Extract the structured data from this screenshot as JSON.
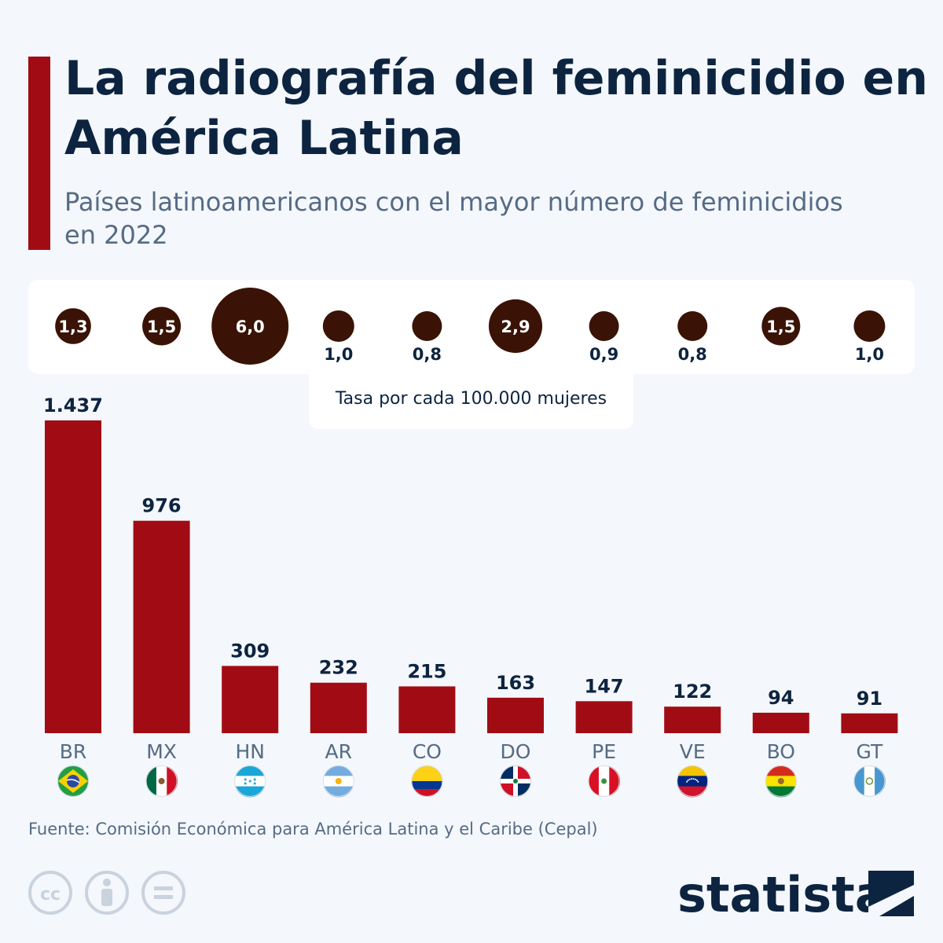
{
  "header": {
    "title": "La radiografía del feminicidio en América Latina",
    "subtitle": "Países latinoamericanos con el mayor número de feminicidios en 2022"
  },
  "rate_caption": "Tasa por cada 100.000 mujeres",
  "source": "Fuente: Comisión Económica para América Latina y el Caribe (Cepal)",
  "brand": {
    "name": "statista"
  },
  "icons": [
    "cc-icon",
    "attribution-icon",
    "no-derivatives-icon",
    "statista-logo-icon"
  ],
  "colors": {
    "bar": "#a10c14",
    "bubble": "#3a1306",
    "title": "#0d2440",
    "subtitle": "#556b85"
  },
  "chart_data": [
    {
      "type": "bar",
      "categories": [
        "BR",
        "MX",
        "HN",
        "AR",
        "CO",
        "DO",
        "PE",
        "VE",
        "BO",
        "GT"
      ],
      "values": [
        1437,
        976,
        309,
        232,
        215,
        163,
        147,
        122,
        94,
        91
      ],
      "value_labels": [
        "1.437",
        "976",
        "309",
        "232",
        "215",
        "163",
        "147",
        "122",
        "94",
        "91"
      ],
      "flags": [
        "brazil-flag-icon",
        "mexico-flag-icon",
        "honduras-flag-icon",
        "argentina-flag-icon",
        "colombia-flag-icon",
        "dominican-republic-flag-icon",
        "peru-flag-icon",
        "venezuela-flag-icon",
        "bolivia-flag-icon",
        "guatemala-flag-icon"
      ],
      "ylim": [
        0,
        1437
      ],
      "grid": false,
      "legend": "none"
    },
    {
      "type": "scatter",
      "title": "Tasa por cada 100.000 mujeres",
      "categories": [
        "BR",
        "MX",
        "HN",
        "AR",
        "CO",
        "DO",
        "PE",
        "VE",
        "BO",
        "GT"
      ],
      "values": [
        1.3,
        1.5,
        6.0,
        1.0,
        0.8,
        2.9,
        0.9,
        0.8,
        1.5,
        1.0
      ],
      "value_labels": [
        "1,3",
        "1,5",
        "6,0",
        "1,0",
        "0,8",
        "2,9",
        "0,9",
        "0,8",
        "1,5",
        "1,0"
      ]
    }
  ]
}
